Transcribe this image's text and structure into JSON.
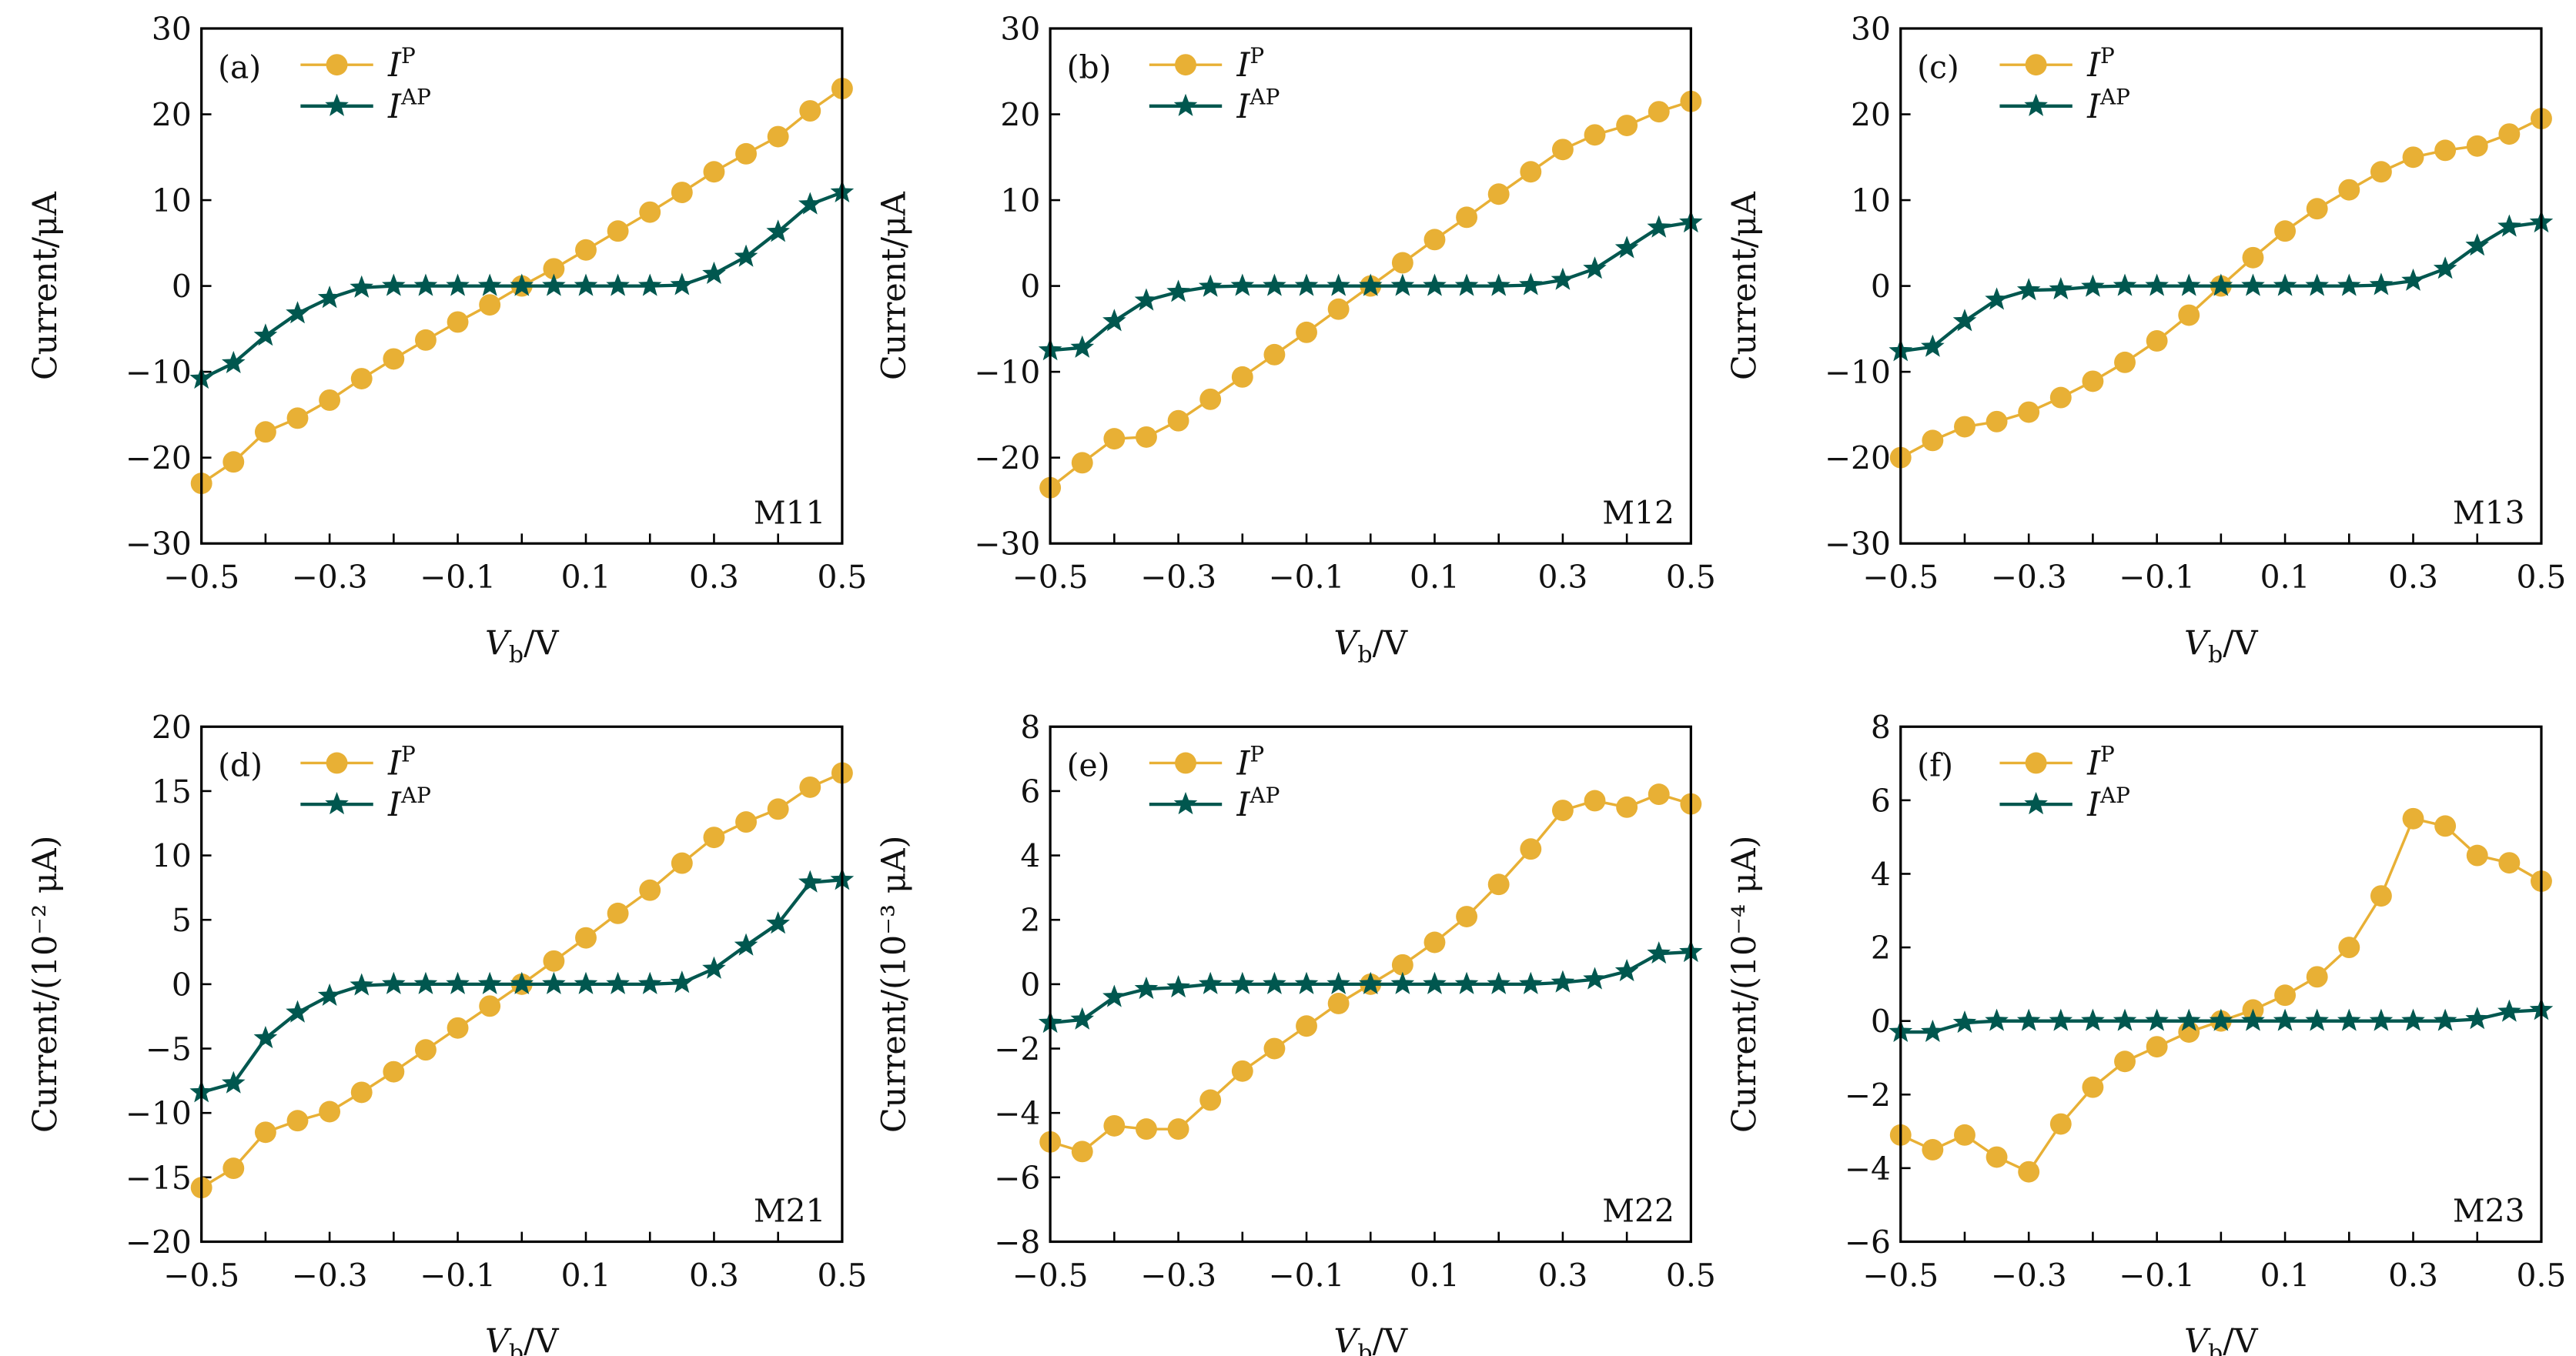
{
  "colors": {
    "p": "#E8B035",
    "ap": "#00574F"
  },
  "legend": {
    "p_base": "I",
    "p_sup": "P",
    "ap_base": "I",
    "ap_sup": "AP"
  },
  "xlabel": {
    "base": "V",
    "sub": "b",
    "unit": "/V"
  },
  "chart_data": [
    {
      "type": "line",
      "panel": "(a)",
      "name": "M11",
      "ylabel": "Current/μA",
      "ylim": [
        -30,
        30
      ],
      "yticks": [
        -30,
        -20,
        -10,
        0,
        10,
        20,
        30
      ],
      "xlim": [
        -0.5,
        0.5
      ],
      "xticks": [
        "−0.5",
        "−0.3",
        "−0.1",
        "0.1",
        "0.3",
        "0.5"
      ],
      "x": [
        -0.5,
        -0.45,
        -0.4,
        -0.35,
        -0.3,
        -0.25,
        -0.2,
        -0.15,
        -0.1,
        -0.05,
        0,
        0.05,
        0.1,
        0.15,
        0.2,
        0.25,
        0.3,
        0.35,
        0.4,
        0.45,
        0.5
      ],
      "series": [
        {
          "name": "I^P",
          "values": [
            -23,
            -20.5,
            -17,
            -15.4,
            -13.3,
            -10.8,
            -8.5,
            -6.3,
            -4.2,
            -2.2,
            0,
            2,
            4.2,
            6.4,
            8.6,
            10.9,
            13.3,
            15.4,
            17.4,
            20.4,
            23
          ]
        },
        {
          "name": "I^AP",
          "values": [
            -10.8,
            -9,
            -5.8,
            -3.2,
            -1.4,
            -0.2,
            0,
            0,
            0,
            0,
            0,
            0,
            0,
            0,
            0,
            0.1,
            1.4,
            3.4,
            6.3,
            9.5,
            10.9
          ]
        }
      ]
    },
    {
      "type": "line",
      "panel": "(b)",
      "name": "M12",
      "ylabel": "Current/μA",
      "ylim": [
        -30,
        30
      ],
      "yticks": [
        -30,
        -20,
        -10,
        0,
        10,
        20,
        30
      ],
      "xlim": [
        -0.5,
        0.5
      ],
      "xticks": [
        "−0.5",
        "−0.3",
        "−0.1",
        "0.1",
        "0.3",
        "0.5"
      ],
      "x": [
        -0.5,
        -0.45,
        -0.4,
        -0.35,
        -0.3,
        -0.25,
        -0.2,
        -0.15,
        -0.1,
        -0.05,
        0,
        0.05,
        0.1,
        0.15,
        0.2,
        0.25,
        0.3,
        0.35,
        0.4,
        0.45,
        0.5
      ],
      "series": [
        {
          "name": "I^P",
          "values": [
            -23.5,
            -20.6,
            -17.8,
            -17.6,
            -15.7,
            -13.2,
            -10.6,
            -8,
            -5.4,
            -2.7,
            0,
            2.7,
            5.4,
            8,
            10.7,
            13.3,
            15.9,
            17.6,
            18.7,
            20.3,
            21.5
          ]
        },
        {
          "name": "I^AP",
          "values": [
            -7.5,
            -7.2,
            -4.1,
            -1.7,
            -0.7,
            -0.1,
            0,
            0,
            0,
            0,
            0,
            0,
            0,
            0,
            0,
            0.1,
            0.7,
            2,
            4.4,
            6.8,
            7.4
          ]
        }
      ]
    },
    {
      "type": "line",
      "panel": "(c)",
      "name": "M13",
      "ylabel": "Current/μA",
      "ylim": [
        -30,
        30
      ],
      "yticks": [
        -30,
        -20,
        -10,
        0,
        10,
        20,
        30
      ],
      "xlim": [
        -0.5,
        0.5
      ],
      "xticks": [
        "−0.5",
        "−0.3",
        "−0.1",
        "0.1",
        "0.3",
        "0.5"
      ],
      "x": [
        -0.5,
        -0.45,
        -0.4,
        -0.35,
        -0.3,
        -0.25,
        -0.2,
        -0.15,
        -0.1,
        -0.05,
        0,
        0.05,
        0.1,
        0.15,
        0.2,
        0.25,
        0.3,
        0.35,
        0.4,
        0.45,
        0.5
      ],
      "series": [
        {
          "name": "I^P",
          "values": [
            -20,
            -18,
            -16.4,
            -15.8,
            -14.7,
            -13,
            -11.1,
            -8.9,
            -6.4,
            -3.4,
            0,
            3.3,
            6.4,
            9,
            11.2,
            13.3,
            15,
            15.8,
            16.3,
            17.7,
            19.5
          ]
        },
        {
          "name": "I^AP",
          "values": [
            -7.6,
            -7.1,
            -4.1,
            -1.6,
            -0.5,
            -0.4,
            -0.1,
            0,
            0,
            0,
            0,
            0,
            0,
            0,
            0,
            0.1,
            0.6,
            2,
            4.7,
            6.9,
            7.4
          ]
        }
      ]
    },
    {
      "type": "line",
      "panel": "(d)",
      "name": "M21",
      "ylabel": "Current/(10⁻² μA)",
      "ylim": [
        -20,
        20
      ],
      "yticks": [
        -20,
        -15,
        -10,
        -5,
        0,
        5,
        10,
        15,
        20
      ],
      "xlim": [
        -0.5,
        0.5
      ],
      "xticks": [
        "−0.5",
        "−0.3",
        "−0.1",
        "0.1",
        "0.3",
        "0.5"
      ],
      "x": [
        -0.5,
        -0.45,
        -0.4,
        -0.35,
        -0.3,
        -0.25,
        -0.2,
        -0.15,
        -0.1,
        -0.05,
        0,
        0.05,
        0.1,
        0.15,
        0.2,
        0.25,
        0.3,
        0.35,
        0.4,
        0.45,
        0.5
      ],
      "series": [
        {
          "name": "I^P",
          "values": [
            -15.8,
            -14.3,
            -11.5,
            -10.6,
            -9.9,
            -8.4,
            -6.8,
            -5.1,
            -3.4,
            -1.7,
            0,
            1.8,
            3.6,
            5.5,
            7.3,
            9.4,
            11.4,
            12.6,
            13.6,
            15.3,
            16.4
          ]
        },
        {
          "name": "I^AP",
          "values": [
            -8.4,
            -7.7,
            -4.2,
            -2.2,
            -0.9,
            -0.1,
            0,
            0,
            0,
            0,
            0,
            0,
            0,
            0,
            0,
            0.1,
            1.2,
            3,
            4.7,
            7.9,
            8.1
          ]
        }
      ]
    },
    {
      "type": "line",
      "panel": "(e)",
      "name": "M22",
      "ylabel": "Current/(10⁻³ μA)",
      "ylim": [
        -8,
        8
      ],
      "yticks": [
        -8,
        -6,
        -4,
        -2,
        0,
        2,
        4,
        6,
        8
      ],
      "xlim": [
        -0.5,
        0.5
      ],
      "xticks": [
        "−0.5",
        "−0.3",
        "−0.1",
        "0.1",
        "0.3",
        "0.5"
      ],
      "x": [
        -0.5,
        -0.45,
        -0.4,
        -0.35,
        -0.3,
        -0.25,
        -0.2,
        -0.15,
        -0.1,
        -0.05,
        0,
        0.05,
        0.1,
        0.15,
        0.2,
        0.25,
        0.3,
        0.35,
        0.4,
        0.45,
        0.5
      ],
      "series": [
        {
          "name": "I^P",
          "values": [
            -4.9,
            -5.2,
            -4.4,
            -4.5,
            -4.5,
            -3.6,
            -2.7,
            -2,
            -1.3,
            -0.6,
            0,
            0.6,
            1.3,
            2.1,
            3.1,
            4.2,
            5.4,
            5.7,
            5.5,
            5.9,
            5.6
          ]
        },
        {
          "name": "I^AP",
          "values": [
            -1.2,
            -1.1,
            -0.4,
            -0.15,
            -0.1,
            0,
            0,
            0,
            0,
            0,
            0,
            0,
            0,
            0,
            0,
            0,
            0.05,
            0.15,
            0.4,
            0.95,
            1.0
          ]
        }
      ]
    },
    {
      "type": "line",
      "panel": "(f)",
      "name": "M23",
      "ylabel": "Current/(10⁻⁴ μA)",
      "ylim": [
        -6,
        8
      ],
      "yticks": [
        -6,
        -4,
        -2,
        0,
        2,
        4,
        6,
        8
      ],
      "xlim": [
        -0.5,
        0.5
      ],
      "xticks": [
        "−0.5",
        "−0.3",
        "−0.1",
        "0.1",
        "0.3",
        "0.5"
      ],
      "x": [
        -0.5,
        -0.45,
        -0.4,
        -0.35,
        -0.3,
        -0.25,
        -0.2,
        -0.15,
        -0.1,
        -0.05,
        0,
        0.05,
        0.1,
        0.15,
        0.2,
        0.25,
        0.3,
        0.35,
        0.4,
        0.45,
        0.5
      ],
      "series": [
        {
          "name": "I^P",
          "values": [
            -3.1,
            -3.5,
            -3.1,
            -3.7,
            -4.1,
            -2.8,
            -1.8,
            -1.1,
            -0.7,
            -0.3,
            0,
            0.3,
            0.7,
            1.2,
            2,
            3.4,
            5.5,
            5.3,
            4.5,
            4.3,
            3.8
          ]
        },
        {
          "name": "I^AP",
          "values": [
            -0.3,
            -0.3,
            -0.05,
            0,
            0,
            0,
            0,
            0,
            0,
            0,
            0,
            0,
            0,
            0,
            0,
            0,
            0,
            0,
            0.05,
            0.25,
            0.3
          ]
        }
      ]
    }
  ]
}
